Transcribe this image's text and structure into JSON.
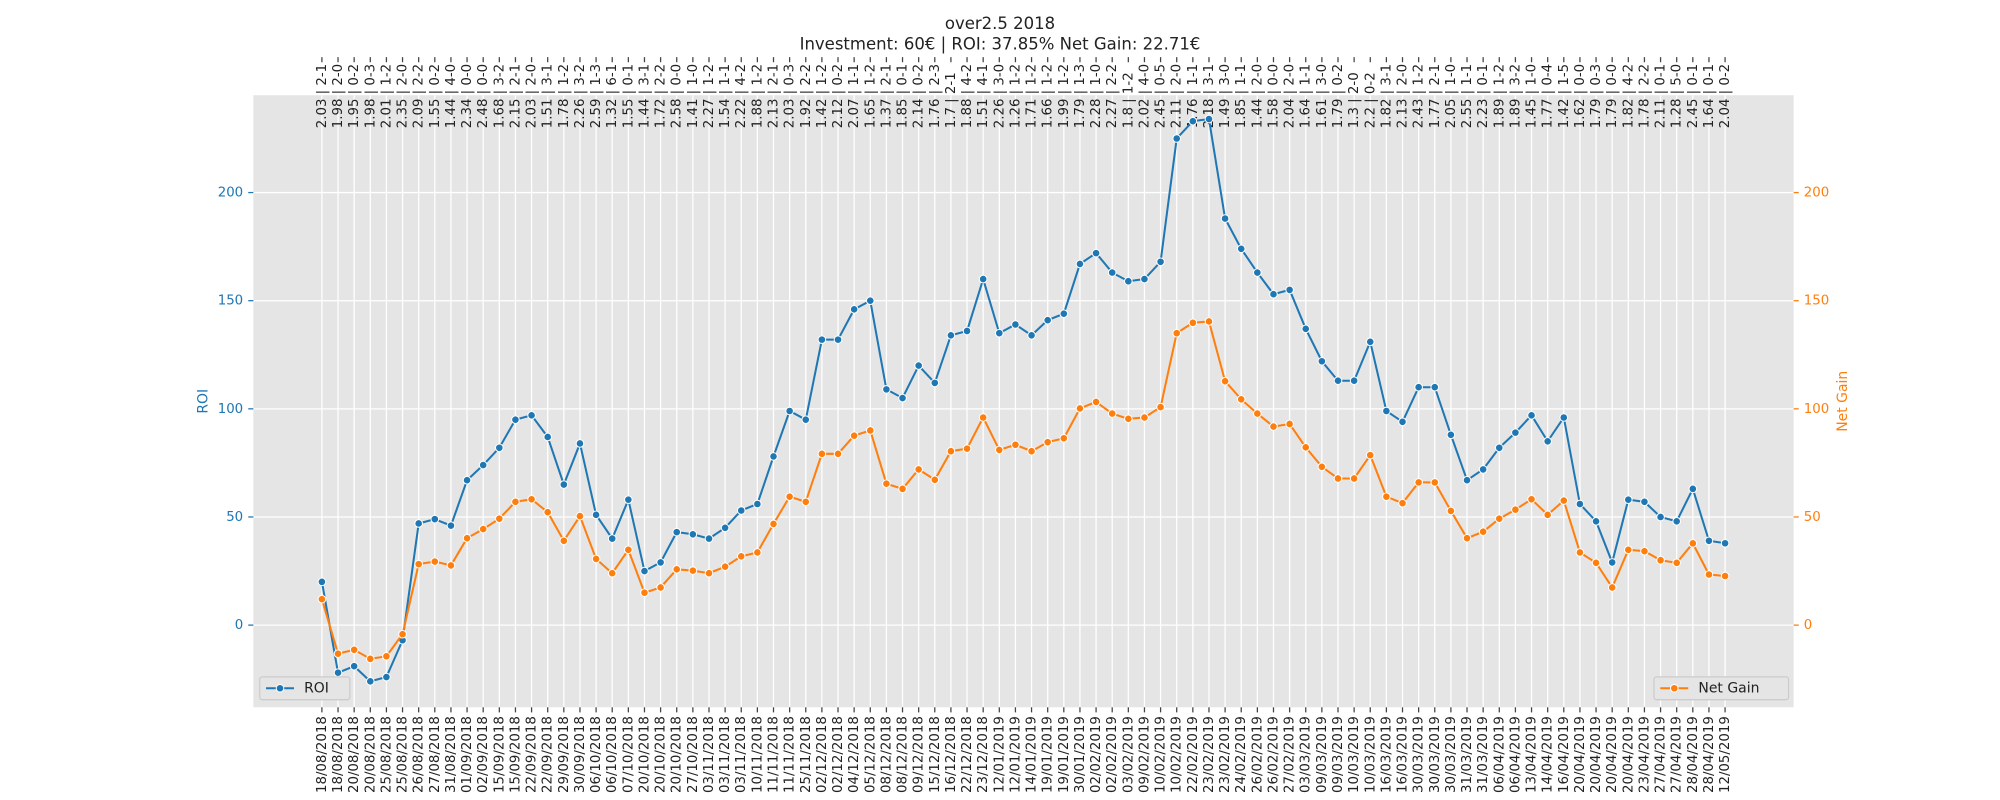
{
  "chart_data": {
    "type": "line",
    "title": "over2.5 2018",
    "subtitle": "Investment: 60€ | ROI: 37.85% Net Gain: 22.71€",
    "ylabel": "ROI",
    "y2label": "Net Gain",
    "categories": [
      "18/08/2018",
      "18/08/2018",
      "20/08/2018",
      "20/08/2018",
      "25/08/2018",
      "25/08/2018",
      "26/08/2018",
      "27/08/2018",
      "31/08/2018",
      "01/09/2018",
      "02/09/2018",
      "15/09/2018",
      "15/09/2018",
      "22/09/2018",
      "22/09/2018",
      "29/09/2018",
      "30/09/2018",
      "06/10/2018",
      "06/10/2018",
      "07/10/2018",
      "20/10/2018",
      "20/10/2018",
      "20/10/2018",
      "27/10/2018",
      "03/11/2018",
      "03/11/2018",
      "03/11/2018",
      "10/11/2018",
      "11/11/2018",
      "11/11/2018",
      "25/11/2018",
      "02/12/2018",
      "02/12/2018",
      "04/12/2018",
      "05/12/2018",
      "08/12/2018",
      "08/12/2018",
      "09/12/2018",
      "15/12/2018",
      "16/12/2018",
      "22/12/2018",
      "23/12/2018",
      "12/01/2019",
      "12/01/2019",
      "14/01/2019",
      "19/01/2019",
      "19/01/2019",
      "30/01/2019",
      "02/02/2019",
      "02/02/2019",
      "03/02/2019",
      "09/02/2019",
      "10/02/2019",
      "10/02/2019",
      "22/02/2019",
      "23/02/2019",
      "23/02/2019",
      "24/02/2019",
      "26/02/2019",
      "26/02/2019",
      "27/02/2019",
      "03/03/2019",
      "09/03/2019",
      "09/03/2019",
      "10/03/2019",
      "10/03/2019",
      "16/03/2019",
      "16/03/2019",
      "30/03/2019",
      "30/03/2019",
      "30/03/2019",
      "31/03/2019",
      "31/03/2019",
      "06/04/2019",
      "06/04/2019",
      "13/04/2019",
      "14/04/2019",
      "16/04/2019",
      "20/04/2019",
      "20/04/2019",
      "20/04/2019",
      "20/04/2019",
      "23/04/2019",
      "27/04/2019",
      "27/04/2019",
      "28/04/2019",
      "28/04/2019",
      "12/05/2019"
    ],
    "top_categories": [
      "2.03 | 2-1",
      "1.98 | 2-0",
      "1.95 | 0-2",
      "1.98 | 0-3",
      "2.01 | 1-2",
      "2.35 | 2-0",
      "2.09 | 2-2",
      "1.55 | 0-2",
      "1.44 | 4-0",
      "2.34 | 0-0",
      "2.48 | 0-0",
      "1.68 | 3-2",
      "2.15 | 2-1",
      "2.03 | 2-0",
      "1.51 | 3-1",
      "1.78 | 1-2",
      "2.26 | 3-2",
      "2.59 | 1-3",
      "1.32 | 6-1",
      "1.55 | 0-1",
      "1.44 | 3-1",
      "1.72 | 2-2",
      "2.58 | 0-0",
      "1.41 | 1-0",
      "2.27 | 1-2",
      "1.54 | 1-1",
      "2.22 | 4-2",
      "1.88 | 1-2",
      "2.13 | 2-1",
      "2.03 | 0-3",
      "1.92 | 2-2",
      "1.42 | 1-2",
      "2.12 | 0-2",
      "2.07 | 1-1",
      "1.65 | 1-2",
      "1.37 | 2-1",
      "1.85 | 0-1",
      "2.14 | 0-2",
      "1.76 | 2-3",
      "1.7 | 2-1",
      "1.88 | 4-2",
      "1.51 | 4-1",
      "2.26 | 3-0",
      "1.26 | 1-2",
      "1.71 | 1-2",
      "1.66 | 1-2",
      "1.99 | 1-2",
      "1.79 | 1-3",
      "2.28 | 1-0",
      "2.27 | 2-2",
      "1.8 | 1-2",
      "2.02 | 4-0",
      "2.45 | 0-5",
      "2.11 | 2-0",
      "1.76 | 1-1",
      "2.18 | 3-1",
      "1.49 | 3-0",
      "1.85 | 1-1",
      "1.44 | 2-0",
      "1.58 | 0-0",
      "2.04 | 2-0",
      "1.64 | 1-1",
      "1.61 | 3-0",
      "1.79 | 0-2",
      "1.3 | 2-0",
      "2.2 | 0-2",
      "1.82 | 3-1",
      "2.13 | 2-0",
      "2.43 | 1-2",
      "1.77 | 2-1",
      "2.05 | 1-0",
      "2.55 | 1-1",
      "2.23 | 0-1",
      "1.89 | 1-2",
      "1.89 | 3-2",
      "1.45 | 1-0",
      "1.77 | 0-4",
      "1.42 | 1-5",
      "1.62 | 0-0",
      "1.79 | 0-3",
      "1.79 | 0-0",
      "1.82 | 4-2",
      "1.78 | 2-2",
      "2.11 | 0-1",
      "1.28 | 5-0",
      "2.45 | 0-1",
      "1.64 | 0-1",
      "2.04 | 0-2"
    ],
    "series": [
      {
        "name": "ROI",
        "color": "#1f77b4",
        "axis": "y",
        "legend": "lower left",
        "values": [
          20,
          -22,
          -19,
          -26,
          -24,
          -7,
          47,
          49,
          46,
          67,
          74,
          82,
          95,
          97,
          87,
          65,
          84,
          51,
          40,
          58,
          25,
          29,
          43,
          42,
          40,
          45,
          53,
          56,
          78,
          99,
          95,
          132,
          132,
          146,
          150,
          109,
          105,
          120,
          112,
          134,
          136,
          160,
          135,
          139,
          134,
          141,
          144,
          167,
          172,
          163,
          159,
          160,
          168,
          225,
          233,
          234,
          188,
          174,
          163,
          153,
          155,
          137,
          122,
          113,
          113,
          131,
          99,
          94,
          110,
          110,
          88,
          67,
          72,
          82,
          89,
          97,
          85,
          96,
          56,
          48,
          29,
          58,
          57,
          50,
          48,
          63,
          39,
          37.85
        ]
      },
      {
        "name": "Net Gain",
        "color": "#ff7f0e",
        "axis": "y2",
        "legend": "lower right",
        "values": [
          12,
          -13.2,
          -11.4,
          -15.6,
          -14.4,
          -4.2,
          28.2,
          29.4,
          27.6,
          40.2,
          44.4,
          49.2,
          57,
          58.2,
          52.2,
          39,
          50.4,
          30.6,
          24,
          34.8,
          15,
          17.4,
          25.8,
          25.2,
          24,
          27,
          31.8,
          33.6,
          46.8,
          59.4,
          57,
          79.2,
          79.2,
          87.6,
          90,
          65.4,
          63,
          72,
          67.2,
          80.4,
          81.6,
          96,
          81,
          83.4,
          80.4,
          84.6,
          86.4,
          100.2,
          103.2,
          97.8,
          95.4,
          96,
          100.8,
          135,
          139.8,
          140.4,
          112.8,
          104.4,
          97.8,
          91.8,
          93,
          82.2,
          73.2,
          67.8,
          67.8,
          78.6,
          59.4,
          56.4,
          66,
          66,
          52.8,
          40.2,
          43.2,
          49.2,
          53.4,
          58.2,
          51,
          57.6,
          33.6,
          28.8,
          17.4,
          34.8,
          34.2,
          30,
          28.8,
          37.8,
          23.4,
          22.71
        ]
      }
    ],
    "ylim": [
      -38,
      245
    ],
    "yticks": [
      0,
      50,
      100,
      150,
      200
    ],
    "y2lim": [
      -38,
      245
    ],
    "y2ticks": [
      0,
      50,
      100,
      150,
      200
    ],
    "grid": true
  }
}
